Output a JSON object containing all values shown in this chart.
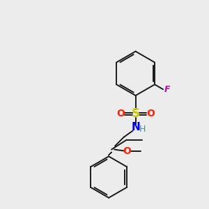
{
  "background_color": "#ececec",
  "bond_color": "#1a1a1a",
  "atom_colors": {
    "S": "#cccc00",
    "O": "#ff2200",
    "N": "#0000ee",
    "H": "#4a9090",
    "F": "#cc00cc"
  },
  "figsize": [
    3.0,
    3.0
  ],
  "dpi": 100
}
